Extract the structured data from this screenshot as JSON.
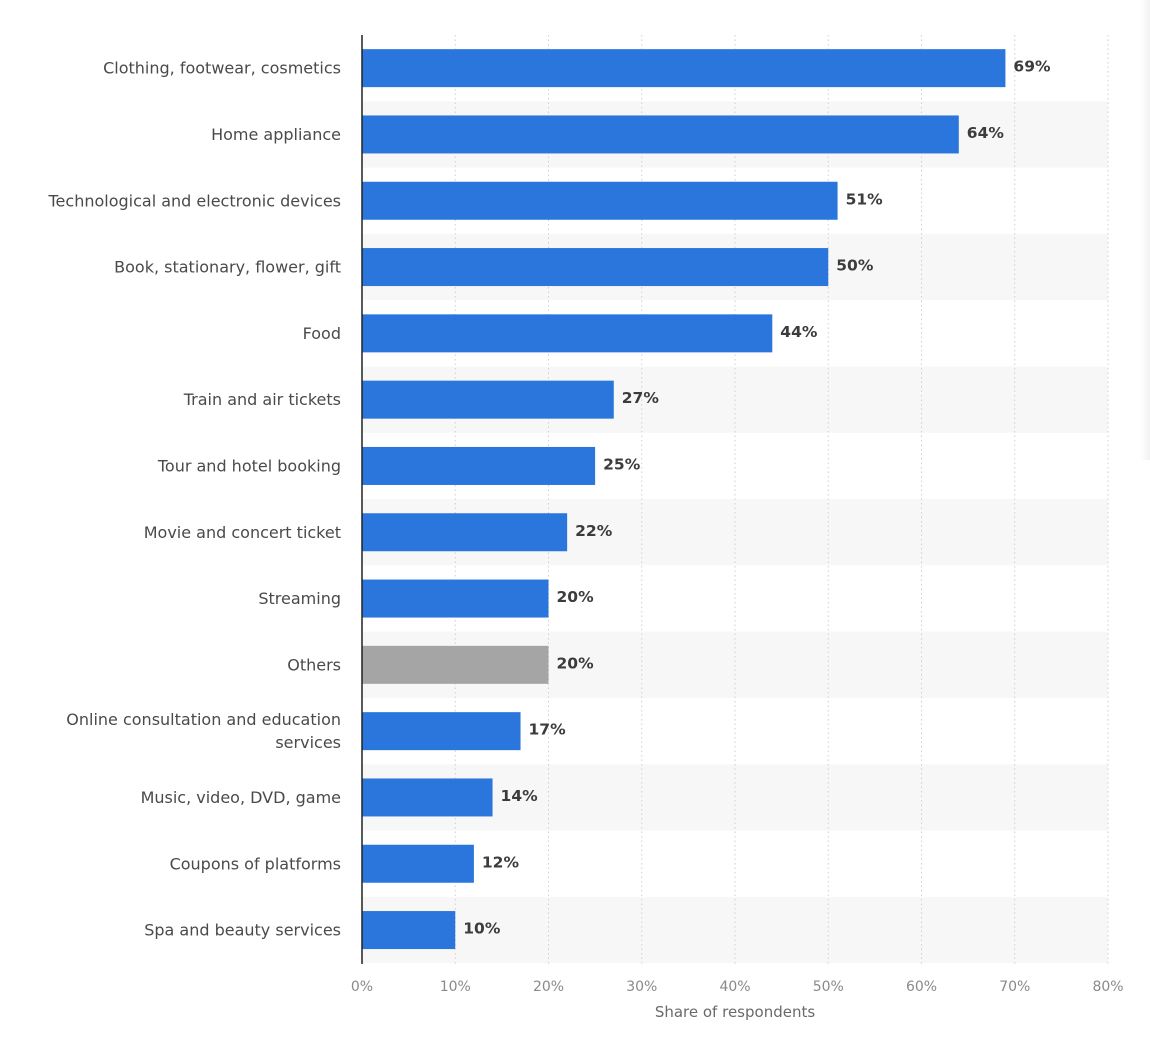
{
  "chart_data": {
    "type": "bar",
    "orientation": "horizontal",
    "categories": [
      "Clothing, footwear, cosmetics",
      "Home appliance",
      "Technological and electronic devices",
      "Book, stationary, flower, gift",
      "Food",
      "Train and air tickets",
      "Tour and hotel booking",
      "Movie and concert ticket",
      "Streaming",
      "Others",
      "Online consultation and education services",
      "Music, video, DVD, game",
      "Coupons of platforms",
      "Spa and beauty services"
    ],
    "values": [
      69,
      64,
      51,
      50,
      44,
      27,
      25,
      22,
      20,
      20,
      17,
      14,
      12,
      10
    ],
    "value_labels": [
      "69%",
      "64%",
      "51%",
      "50%",
      "44%",
      "27%",
      "25%",
      "22%",
      "20%",
      "20%",
      "17%",
      "14%",
      "12%",
      "10%"
    ],
    "highlight_category": "Others",
    "xlim": [
      0,
      80
    ],
    "xticks": [
      0,
      10,
      20,
      30,
      40,
      50,
      60,
      70,
      80
    ],
    "xtick_labels": [
      "0%",
      "10%",
      "20%",
      "30%",
      "40%",
      "50%",
      "60%",
      "70%",
      "80%"
    ],
    "xlabel": "Share of respondents",
    "ylabel": "",
    "title": "",
    "grid": true,
    "colors": {
      "bar": "#2a76dd",
      "bar_highlight": "#a5a5a5",
      "row_band": "#f7f7f7",
      "grid": "#cfcfcf",
      "axis": "#222222"
    }
  }
}
